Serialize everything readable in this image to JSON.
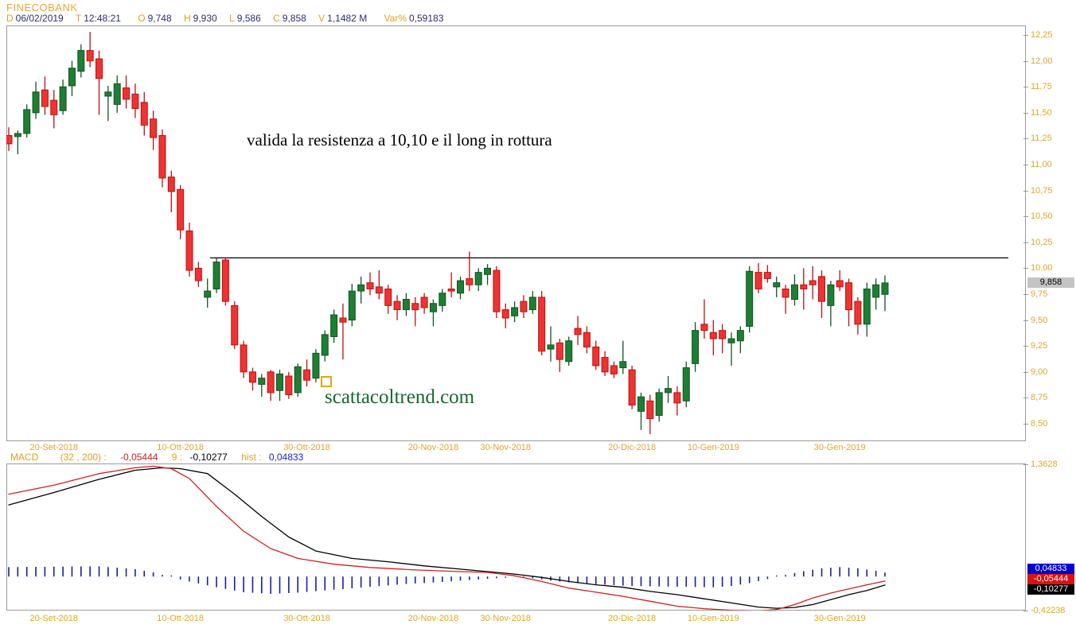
{
  "header": {
    "symbol": "FINECOBANK",
    "fields": [
      {
        "label": "D",
        "value": "06/02/2019"
      },
      {
        "label": "T",
        "value": "12:48:21"
      },
      {
        "label": "O",
        "value": "9,748"
      },
      {
        "label": "H",
        "value": "9,930"
      },
      {
        "label": "L",
        "value": "9,586"
      },
      {
        "label": "C",
        "value": "9,858"
      },
      {
        "label": "V",
        "value": "1,1482 M"
      },
      {
        "label": "Var%",
        "value": "0,59183"
      }
    ]
  },
  "annotation": "valida la resistenza a 10,10 e il long in rottura",
  "watermark": "scattacoltrend.com",
  "price_axis": {
    "ticks": [
      "12,25",
      "12,00",
      "11,75",
      "11,50",
      "11,25",
      "11,00",
      "10,75",
      "10,50",
      "10,25",
      "10,00",
      "9,75",
      "9,50",
      "9,25",
      "9,00",
      "8,75",
      "8,50"
    ],
    "last_price_label": "9,858"
  },
  "macd_row": {
    "name": "MACD",
    "params": "(32 , 200) :",
    "macd_value": "-0,05444",
    "signal_label": "9 :",
    "signal_value": "-0,10277",
    "hist_label": "hist :",
    "hist_value": "0,04833"
  },
  "macd_axis": {
    "max": "1,3628",
    "min": "-0,42238",
    "badges": [
      {
        "text": "0,04833",
        "color": "#0000D0"
      },
      {
        "text": "-0,05444",
        "color": "#DD1111"
      },
      {
        "text": "-0,10277",
        "color": "#000000"
      }
    ]
  },
  "colors": {
    "accent_orange": "#E39E22",
    "value_navy": "#2E2E6E",
    "candle_up_fill": "#1E7E34",
    "candle_up_stroke": "#115423",
    "candle_down_fill": "#EE3333",
    "candle_down_stroke": "#BB1111",
    "macd_line_red": "#CC2222",
    "signal_line_black": "#000000",
    "hist_blue": "#1B1BA8",
    "resistance_black": "#000000",
    "panel_border": "#9a9a9a",
    "badge_gray": "#C4C4C4"
  },
  "chart_data": {
    "type": "candlestick",
    "symbol": "FINECOBANK",
    "x_dates": [
      {
        "label": "20-Set-2018",
        "index": 5
      },
      {
        "label": "10-Ott-2018",
        "index": 19
      },
      {
        "label": "30-Ott-2018",
        "index": 33
      },
      {
        "label": "20-Nov-2018",
        "index": 47
      },
      {
        "label": "30-Nov-2018",
        "index": 55
      },
      {
        "label": "20-Dic-2018",
        "index": 69
      },
      {
        "label": "10-Gen-2019",
        "index": 78
      },
      {
        "label": "30-Gen-2019",
        "index": 92
      }
    ],
    "price_panel": {
      "ylim": [
        8.3,
        12.34
      ],
      "tick_step": 0.25,
      "resistance_level": 10.1,
      "resistance_span_indices": [
        23,
        97
      ],
      "last_price": 9.858,
      "candles_ohlc": [
        [
          11.28,
          11.36,
          11.13,
          11.2
        ],
        [
          11.27,
          11.33,
          11.1,
          11.3
        ],
        [
          11.3,
          11.58,
          11.26,
          11.53
        ],
        [
          11.5,
          11.8,
          11.44,
          11.7
        ],
        [
          11.72,
          11.85,
          11.48,
          11.56
        ],
        [
          11.62,
          11.72,
          11.35,
          11.48
        ],
        [
          11.52,
          11.82,
          11.48,
          11.75
        ],
        [
          11.76,
          12.0,
          11.66,
          11.93
        ],
        [
          11.9,
          12.16,
          11.84,
          12.1
        ],
        [
          12.1,
          12.28,
          11.94,
          12.0
        ],
        [
          12.02,
          12.1,
          11.48,
          11.83
        ],
        [
          11.66,
          11.76,
          11.42,
          11.7
        ],
        [
          11.58,
          11.86,
          11.5,
          11.78
        ],
        [
          11.74,
          11.86,
          11.54,
          11.63
        ],
        [
          11.68,
          11.78,
          11.45,
          11.54
        ],
        [
          11.6,
          11.7,
          11.28,
          11.38
        ],
        [
          11.44,
          11.52,
          11.14,
          11.26
        ],
        [
          11.28,
          11.34,
          10.78,
          10.87
        ],
        [
          10.88,
          10.94,
          10.54,
          10.74
        ],
        [
          10.76,
          10.8,
          10.28,
          10.37
        ],
        [
          10.36,
          10.44,
          9.92,
          9.98
        ],
        [
          10.0,
          10.06,
          9.82,
          9.88
        ],
        [
          9.72,
          9.9,
          9.62,
          9.78
        ],
        [
          9.8,
          10.1,
          9.76,
          10.06
        ],
        [
          10.08,
          10.1,
          9.64,
          9.68
        ],
        [
          9.64,
          9.68,
          9.22,
          9.26
        ],
        [
          9.26,
          9.3,
          8.94,
          9.0
        ],
        [
          9.0,
          9.04,
          8.82,
          8.9
        ],
        [
          8.88,
          8.98,
          8.76,
          8.94
        ],
        [
          9.0,
          9.02,
          8.72,
          8.8
        ],
        [
          8.82,
          9.02,
          8.72,
          8.98
        ],
        [
          8.96,
          9.0,
          8.74,
          8.78
        ],
        [
          8.8,
          9.08,
          8.76,
          9.05
        ],
        [
          9.02,
          9.12,
          8.86,
          8.92
        ],
        [
          8.94,
          9.22,
          8.9,
          9.18
        ],
        [
          9.16,
          9.4,
          9.1,
          9.36
        ],
        [
          9.34,
          9.6,
          9.28,
          9.55
        ],
        [
          9.52,
          9.66,
          9.12,
          9.48
        ],
        [
          9.5,
          9.85,
          9.44,
          9.78
        ],
        [
          9.78,
          9.92,
          9.66,
          9.84
        ],
        [
          9.86,
          9.96,
          9.74,
          9.8
        ],
        [
          9.82,
          9.98,
          9.7,
          9.76
        ],
        [
          9.8,
          9.84,
          9.56,
          9.64
        ],
        [
          9.68,
          9.74,
          9.5,
          9.6
        ],
        [
          9.6,
          9.76,
          9.54,
          9.7
        ],
        [
          9.66,
          9.72,
          9.44,
          9.6
        ],
        [
          9.72,
          9.76,
          9.56,
          9.62
        ],
        [
          9.58,
          9.7,
          9.44,
          9.66
        ],
        [
          9.64,
          9.8,
          9.58,
          9.76
        ],
        [
          9.8,
          9.96,
          9.72,
          9.78
        ],
        [
          9.76,
          9.92,
          9.7,
          9.88
        ],
        [
          9.9,
          10.16,
          9.78,
          9.84
        ],
        [
          9.84,
          10.0,
          9.78,
          9.96
        ],
        [
          9.94,
          10.04,
          9.84,
          10.0
        ],
        [
          9.98,
          10.02,
          9.52,
          9.58
        ],
        [
          9.6,
          9.66,
          9.42,
          9.52
        ],
        [
          9.54,
          9.68,
          9.48,
          9.62
        ],
        [
          9.68,
          9.74,
          9.52,
          9.58
        ],
        [
          9.6,
          9.78,
          9.56,
          9.72
        ],
        [
          9.72,
          9.78,
          9.16,
          9.2
        ],
        [
          9.22,
          9.44,
          9.1,
          9.26
        ],
        [
          9.28,
          9.32,
          9.0,
          9.12
        ],
        [
          9.1,
          9.34,
          9.06,
          9.3
        ],
        [
          9.42,
          9.54,
          9.26,
          9.36
        ],
        [
          9.38,
          9.44,
          9.18,
          9.24
        ],
        [
          9.24,
          9.3,
          9.02,
          9.06
        ],
        [
          9.14,
          9.2,
          8.96,
          9.0
        ],
        [
          9.06,
          9.1,
          8.94,
          8.98
        ],
        [
          9.04,
          9.3,
          8.98,
          9.1
        ],
        [
          9.02,
          9.06,
          8.64,
          8.68
        ],
        [
          8.62,
          8.8,
          8.44,
          8.76
        ],
        [
          8.72,
          8.78,
          8.4,
          8.55
        ],
        [
          8.58,
          8.84,
          8.52,
          8.8
        ],
        [
          8.8,
          8.96,
          8.7,
          8.84
        ],
        [
          8.8,
          8.86,
          8.58,
          8.7
        ],
        [
          8.72,
          9.1,
          8.66,
          9.04
        ],
        [
          9.08,
          9.48,
          9.0,
          9.4
        ],
        [
          9.46,
          9.7,
          9.32,
          9.4
        ],
        [
          9.38,
          9.5,
          9.16,
          9.32
        ],
        [
          9.4,
          9.46,
          9.18,
          9.32
        ],
        [
          9.28,
          9.38,
          9.06,
          9.32
        ],
        [
          9.3,
          9.44,
          9.18,
          9.4
        ],
        [
          9.44,
          10.02,
          9.38,
          9.97
        ],
        [
          9.96,
          10.05,
          9.76,
          9.8
        ],
        [
          9.96,
          10.03,
          9.86,
          9.9
        ],
        [
          9.82,
          9.92,
          9.72,
          9.86
        ],
        [
          9.8,
          9.84,
          9.56,
          9.72
        ],
        [
          9.7,
          9.94,
          9.64,
          9.84
        ],
        [
          9.84,
          10.0,
          9.6,
          9.8
        ],
        [
          9.88,
          10.02,
          9.7,
          9.84
        ],
        [
          9.92,
          9.98,
          9.52,
          9.68
        ],
        [
          9.64,
          9.88,
          9.44,
          9.84
        ],
        [
          9.88,
          9.98,
          9.78,
          9.82
        ],
        [
          9.86,
          9.9,
          9.44,
          9.6
        ],
        [
          9.68,
          9.72,
          9.36,
          9.46
        ],
        [
          9.46,
          9.86,
          9.34,
          9.8
        ],
        [
          9.72,
          9.9,
          9.6,
          9.84
        ],
        [
          9.748,
          9.93,
          9.586,
          9.858
        ]
      ]
    },
    "macd_panel": {
      "ylim": [
        -0.42238,
        1.3628
      ],
      "macd_value": -0.05444,
      "signal_value": -0.10277,
      "hist_value": 0.04833,
      "macd_series": [
        [
          0,
          1.0
        ],
        [
          5,
          1.11
        ],
        [
          10,
          1.25
        ],
        [
          14,
          1.32
        ],
        [
          16,
          1.34
        ],
        [
          18,
          1.31
        ],
        [
          20,
          1.19
        ],
        [
          23,
          0.85
        ],
        [
          26,
          0.55
        ],
        [
          29,
          0.34
        ],
        [
          32,
          0.22
        ],
        [
          36,
          0.15
        ],
        [
          40,
          0.11
        ],
        [
          45,
          0.08
        ],
        [
          50,
          0.06
        ],
        [
          53,
          0.05
        ],
        [
          56,
          0.01
        ],
        [
          59,
          -0.06
        ],
        [
          62,
          -0.14
        ],
        [
          65,
          -0.19
        ],
        [
          68,
          -0.24
        ],
        [
          71,
          -0.3
        ],
        [
          74,
          -0.36
        ],
        [
          77,
          -0.39
        ],
        [
          80,
          -0.41
        ],
        [
          83,
          -0.42
        ],
        [
          85,
          -0.4
        ],
        [
          87,
          -0.34
        ],
        [
          89,
          -0.26
        ],
        [
          91,
          -0.2
        ],
        [
          93,
          -0.15
        ],
        [
          95,
          -0.1
        ],
        [
          97,
          -0.05444
        ]
      ],
      "signal_series": [
        [
          0,
          0.87
        ],
        [
          5,
          1.02
        ],
        [
          10,
          1.18
        ],
        [
          14,
          1.29
        ],
        [
          17,
          1.32
        ],
        [
          19,
          1.31
        ],
        [
          22,
          1.25
        ],
        [
          25,
          1.0
        ],
        [
          28,
          0.73
        ],
        [
          31,
          0.48
        ],
        [
          34,
          0.31
        ],
        [
          38,
          0.22
        ],
        [
          42,
          0.18
        ],
        [
          46,
          0.13
        ],
        [
          50,
          0.09
        ],
        [
          53,
          0.06
        ],
        [
          56,
          0.03
        ],
        [
          59,
          -0.01
        ],
        [
          62,
          -0.06
        ],
        [
          65,
          -0.1
        ],
        [
          68,
          -0.13
        ],
        [
          71,
          -0.18
        ],
        [
          74,
          -0.22
        ],
        [
          77,
          -0.27
        ],
        [
          80,
          -0.32
        ],
        [
          83,
          -0.37
        ],
        [
          85,
          -0.385
        ],
        [
          87,
          -0.375
        ],
        [
          89,
          -0.34
        ],
        [
          91,
          -0.28
        ],
        [
          93,
          -0.22
        ],
        [
          95,
          -0.17
        ],
        [
          97,
          -0.10277
        ]
      ],
      "histogram_series": [
        [
          0,
          0.115
        ],
        [
          5,
          0.12
        ],
        [
          10,
          0.125
        ],
        [
          14,
          0.09
        ],
        [
          16,
          0.05
        ],
        [
          18,
          -0.01
        ],
        [
          20,
          -0.06
        ],
        [
          23,
          -0.13
        ],
        [
          26,
          -0.19
        ],
        [
          29,
          -0.21
        ],
        [
          32,
          -0.195
        ],
        [
          36,
          -0.16
        ],
        [
          40,
          -0.125
        ],
        [
          44,
          -0.09
        ],
        [
          48,
          -0.065
        ],
        [
          52,
          -0.035
        ],
        [
          54,
          -0.02
        ],
        [
          56,
          -0.01
        ],
        [
          58,
          -0.02
        ],
        [
          60,
          -0.05
        ],
        [
          63,
          -0.08
        ],
        [
          66,
          -0.1
        ],
        [
          69,
          -0.115
        ],
        [
          72,
          -0.12
        ],
        [
          75,
          -0.125
        ],
        [
          78,
          -0.13
        ],
        [
          80,
          -0.115
        ],
        [
          82,
          -0.08
        ],
        [
          84,
          -0.03
        ],
        [
          86,
          0.02
        ],
        [
          88,
          0.065
        ],
        [
          90,
          0.1
        ],
        [
          92,
          0.115
        ],
        [
          94,
          0.1
        ],
        [
          96,
          0.07
        ],
        [
          97,
          0.04833
        ]
      ]
    }
  }
}
